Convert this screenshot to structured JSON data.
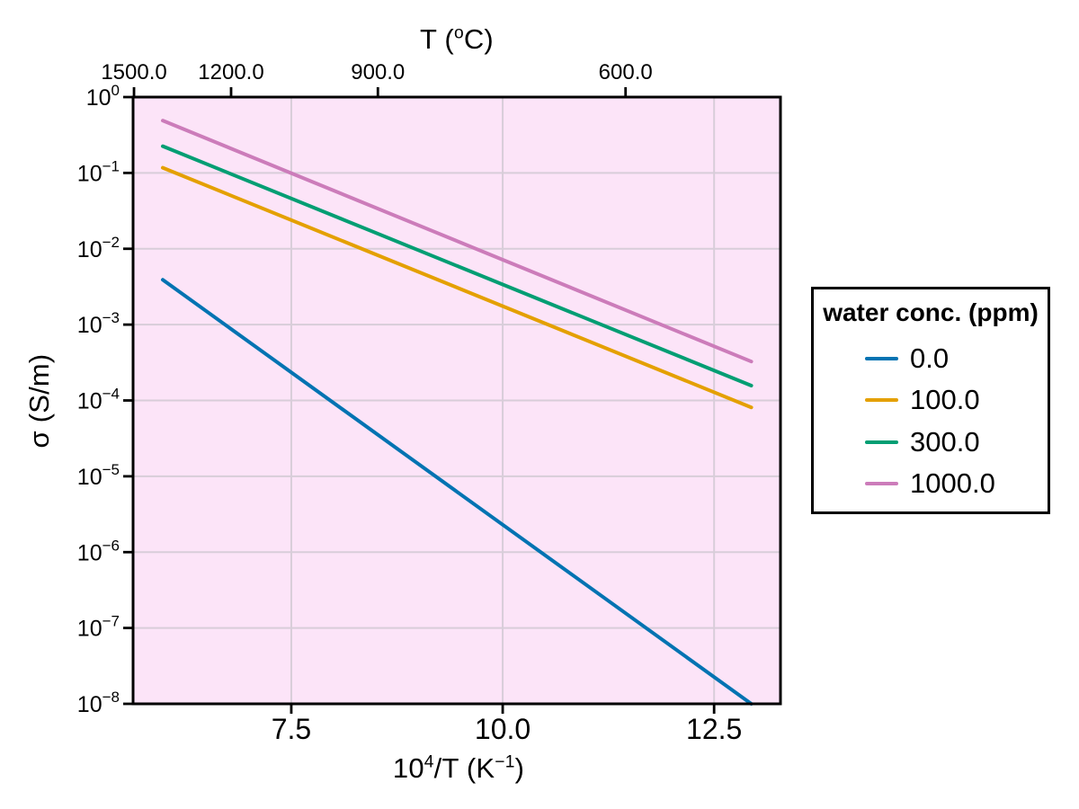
{
  "figure": {
    "background": "#ffffff"
  },
  "chart_data": {
    "type": "line",
    "x_axis": {
      "label_parts": {
        "pre": "10",
        "sup1": "4",
        "mid": "/T (K",
        "sup2": "−1",
        "post": ")"
      },
      "scale": "linear",
      "range": [
        5.629,
        13.285
      ],
      "ticks": [
        {
          "value": 7.5,
          "label": "7.5"
        },
        {
          "value": 10.0,
          "label": "10.0"
        },
        {
          "value": 12.5,
          "label": "12.5"
        }
      ]
    },
    "top_axis": {
      "label_parts": {
        "pre": "T (",
        "sup": "o",
        "post": "C)"
      },
      "ticks": [
        {
          "celsius": 1500.0,
          "x": 5.64,
          "label": "1500.0"
        },
        {
          "celsius": 1200.0,
          "x": 6.788,
          "label": "1200.0"
        },
        {
          "celsius": 900.0,
          "x": 8.524,
          "label": "900.0"
        },
        {
          "celsius": 600.0,
          "x": 11.453,
          "label": "600.0"
        }
      ]
    },
    "y_axis": {
      "label": "σ (S/m)",
      "scale": "log",
      "range_exponents": [
        0,
        -8
      ],
      "tick_exponents": [
        0,
        -1,
        -2,
        -3,
        -4,
        -5,
        -6,
        -7,
        -8
      ]
    },
    "grid": {
      "show": true,
      "color": "#d8cdd9"
    },
    "plot_background": "#fce4f8",
    "series": [
      {
        "name": "0.0",
        "color": "#0173b2",
        "points": [
          [
            5.98,
            0.0039
          ],
          [
            12.94,
            1e-08
          ]
        ]
      },
      {
        "name": "100.0",
        "color": "#e4a000",
        "points": [
          [
            5.98,
            0.117
          ],
          [
            12.94,
            8.1e-05
          ]
        ]
      },
      {
        "name": "300.0",
        "color": "#029e73",
        "points": [
          [
            5.98,
            0.225
          ],
          [
            12.94,
            0.000157
          ]
        ]
      },
      {
        "name": "1000.0",
        "color": "#cc7cba",
        "points": [
          [
            5.98,
            0.49
          ],
          [
            12.94,
            0.000326
          ]
        ]
      }
    ],
    "legend": {
      "title": "water conc. (ppm)",
      "position": "outside right",
      "border_color": "#000000",
      "background": "#ffffff"
    }
  }
}
